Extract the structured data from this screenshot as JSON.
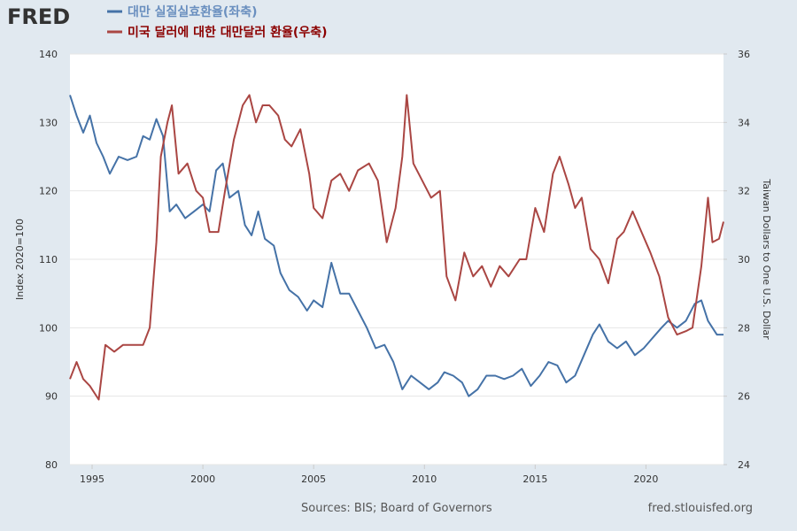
{
  "logo": "FRED",
  "chart_data": {
    "type": "line",
    "y_label": "Index 2020=100",
    "y2_label": "Taiwan Dollars to One U.S. Dollar",
    "source": "Sources: BIS; Board of Governors",
    "site": "fred.stlouisfed.org",
    "xlim": [
      1994,
      2023.5
    ],
    "xticks": [
      1995,
      2000,
      2005,
      2010,
      2015,
      2020
    ],
    "ylim": [
      80,
      140
    ],
    "yticks": [
      80,
      90,
      100,
      110,
      120,
      130,
      140
    ],
    "y2lim": [
      24,
      36
    ],
    "y2ticks": [
      24,
      26,
      28,
      30,
      32,
      34,
      36
    ],
    "grid": true,
    "series": [
      {
        "name": "대만 실질실효환율(좌축)",
        "color": "#4572a7",
        "axis": "y",
        "x": [
          1994.0,
          1994.3,
          1994.6,
          1994.9,
          1995.2,
          1995.5,
          1995.8,
          1996.2,
          1996.6,
          1997.0,
          1997.3,
          1997.6,
          1997.9,
          1998.2,
          1998.5,
          1998.8,
          1999.2,
          1999.6,
          2000.0,
          2000.3,
          2000.6,
          2000.9,
          2001.2,
          2001.6,
          2001.9,
          2002.2,
          2002.5,
          2002.8,
          2003.2,
          2003.5,
          2003.9,
          2004.3,
          2004.7,
          2005.0,
          2005.4,
          2005.8,
          2006.2,
          2006.6,
          2007.0,
          2007.4,
          2007.8,
          2008.2,
          2008.6,
          2009.0,
          2009.4,
          2009.8,
          2010.2,
          2010.6,
          2010.9,
          2011.3,
          2011.7,
          2012.0,
          2012.4,
          2012.8,
          2013.2,
          2013.6,
          2014.0,
          2014.4,
          2014.8,
          2015.2,
          2015.6,
          2016.0,
          2016.4,
          2016.8,
          2017.2,
          2017.6,
          2017.9,
          2018.3,
          2018.7,
          2019.1,
          2019.5,
          2019.9,
          2020.3,
          2020.7,
          2021.0,
          2021.4,
          2021.8,
          2022.2,
          2022.5,
          2022.8,
          2023.2,
          2023.5
        ],
        "values": [
          134,
          131,
          128.5,
          131,
          127,
          125,
          122.5,
          125,
          124.5,
          125,
          128,
          127.5,
          130.5,
          128,
          117,
          118,
          116,
          117,
          118,
          117,
          123,
          124,
          119,
          120,
          115,
          113.5,
          117,
          113,
          112,
          108,
          105.5,
          104.5,
          102.5,
          104,
          103,
          109.5,
          105,
          105,
          102.5,
          100,
          97,
          97.5,
          95,
          91,
          93,
          92,
          91,
          92,
          93.5,
          93,
          92,
          90,
          91,
          93,
          93,
          92.5,
          93,
          94,
          91.5,
          93,
          95,
          94.5,
          92,
          93,
          96,
          99,
          100.5,
          98,
          97,
          98,
          96,
          97,
          98.5,
          100,
          101,
          100,
          101,
          103.5,
          104,
          101,
          99,
          99
        ]
      },
      {
        "name": "미국 달러에 대한 대만달러 환율(우축)",
        "color": "#aa4643",
        "axis": "y2",
        "x": [
          1994.0,
          1994.3,
          1994.6,
          1994.9,
          1995.3,
          1995.6,
          1996.0,
          1996.4,
          1996.8,
          1997.3,
          1997.6,
          1997.9,
          1998.1,
          1998.4,
          1998.6,
          1998.9,
          1999.3,
          1999.7,
          2000.0,
          2000.3,
          2000.7,
          2001.0,
          2001.4,
          2001.8,
          2002.1,
          2002.4,
          2002.7,
          2003.0,
          2003.4,
          2003.7,
          2004.0,
          2004.4,
          2004.8,
          2005.0,
          2005.4,
          2005.8,
          2006.2,
          2006.6,
          2007.0,
          2007.5,
          2007.9,
          2008.3,
          2008.7,
          2009.0,
          2009.2,
          2009.5,
          2009.9,
          2010.3,
          2010.7,
          2011.0,
          2011.4,
          2011.8,
          2012.2,
          2012.6,
          2013.0,
          2013.4,
          2013.8,
          2014.3,
          2014.6,
          2015.0,
          2015.4,
          2015.8,
          2016.1,
          2016.5,
          2016.8,
          2017.1,
          2017.5,
          2017.9,
          2018.3,
          2018.7,
          2019.0,
          2019.4,
          2019.8,
          2020.2,
          2020.6,
          2021.0,
          2021.4,
          2021.8,
          2022.1,
          2022.5,
          2022.8,
          2023.0,
          2023.3,
          2023.5
        ],
        "values": [
          26.5,
          27.0,
          26.5,
          26.3,
          25.9,
          27.5,
          27.3,
          27.5,
          27.5,
          27.5,
          28.0,
          30.5,
          33.0,
          34.0,
          34.5,
          32.5,
          32.8,
          32.0,
          31.8,
          30.8,
          30.8,
          32.0,
          33.5,
          34.5,
          34.8,
          34.0,
          34.5,
          34.5,
          34.2,
          33.5,
          33.3,
          33.8,
          32.5,
          31.5,
          31.2,
          32.3,
          32.5,
          32.0,
          32.6,
          32.8,
          32.3,
          30.5,
          31.5,
          33.0,
          34.8,
          32.8,
          32.3,
          31.8,
          32.0,
          29.5,
          28.8,
          30.2,
          29.5,
          29.8,
          29.2,
          29.8,
          29.5,
          30.0,
          30.0,
          31.5,
          30.8,
          32.5,
          33.0,
          32.2,
          31.5,
          31.8,
          30.3,
          30.0,
          29.3,
          30.6,
          30.8,
          31.4,
          30.8,
          30.2,
          29.5,
          28.3,
          27.8,
          27.9,
          28.0,
          29.8,
          31.8,
          30.5,
          30.6,
          31.1
        ]
      }
    ]
  }
}
